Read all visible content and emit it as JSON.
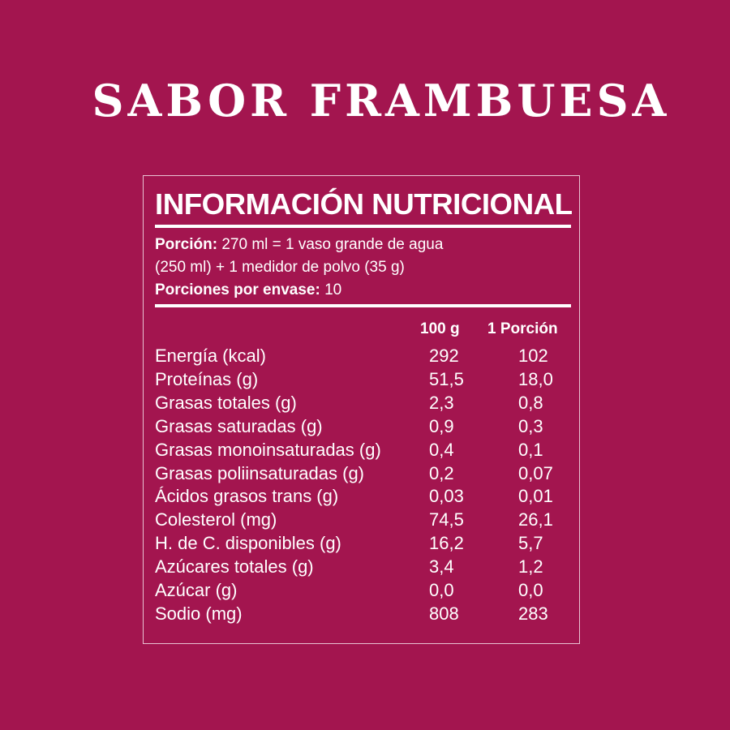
{
  "title": "SABOR FRAMBUESA",
  "panel": {
    "heading": "INFORMACIÓN NUTRICIONAL",
    "portion_label": "Porción:",
    "portion_text": " 270 ml = 1 vaso grande de agua",
    "portion_text2": "(250 ml) + 1 medidor de polvo (35 g)",
    "servings_label": "Porciones por envase:",
    "servings_value": " 10",
    "columns": [
      "100 g",
      "1 Porción"
    ],
    "rows": [
      [
        "Energía (kcal)",
        "292",
        "102"
      ],
      [
        "Proteínas (g)",
        "51,5",
        "18,0"
      ],
      [
        "Grasas totales (g)",
        "2,3",
        "0,8"
      ],
      [
        "Grasas saturadas (g)",
        "0,9",
        "0,3"
      ],
      [
        "Grasas monoinsaturadas (g)",
        "0,4",
        "0,1"
      ],
      [
        "Grasas poliinsaturadas (g)",
        "0,2",
        "0,07"
      ],
      [
        "Ácidos grasos trans (g)",
        "0,03",
        "0,01"
      ],
      [
        "Colesterol (mg)",
        "74,5",
        "26,1"
      ],
      [
        "H. de C. disponibles (g)",
        "16,2",
        "5,7"
      ],
      [
        "Azúcares totales (g)",
        "3,4",
        "1,2"
      ],
      [
        "Azúcar (g)",
        "0,0",
        "0,0"
      ],
      [
        "Sodio (mg)",
        "808",
        "283"
      ]
    ]
  },
  "colors": {
    "background": "#A3154F",
    "text": "#FFFFFF"
  }
}
